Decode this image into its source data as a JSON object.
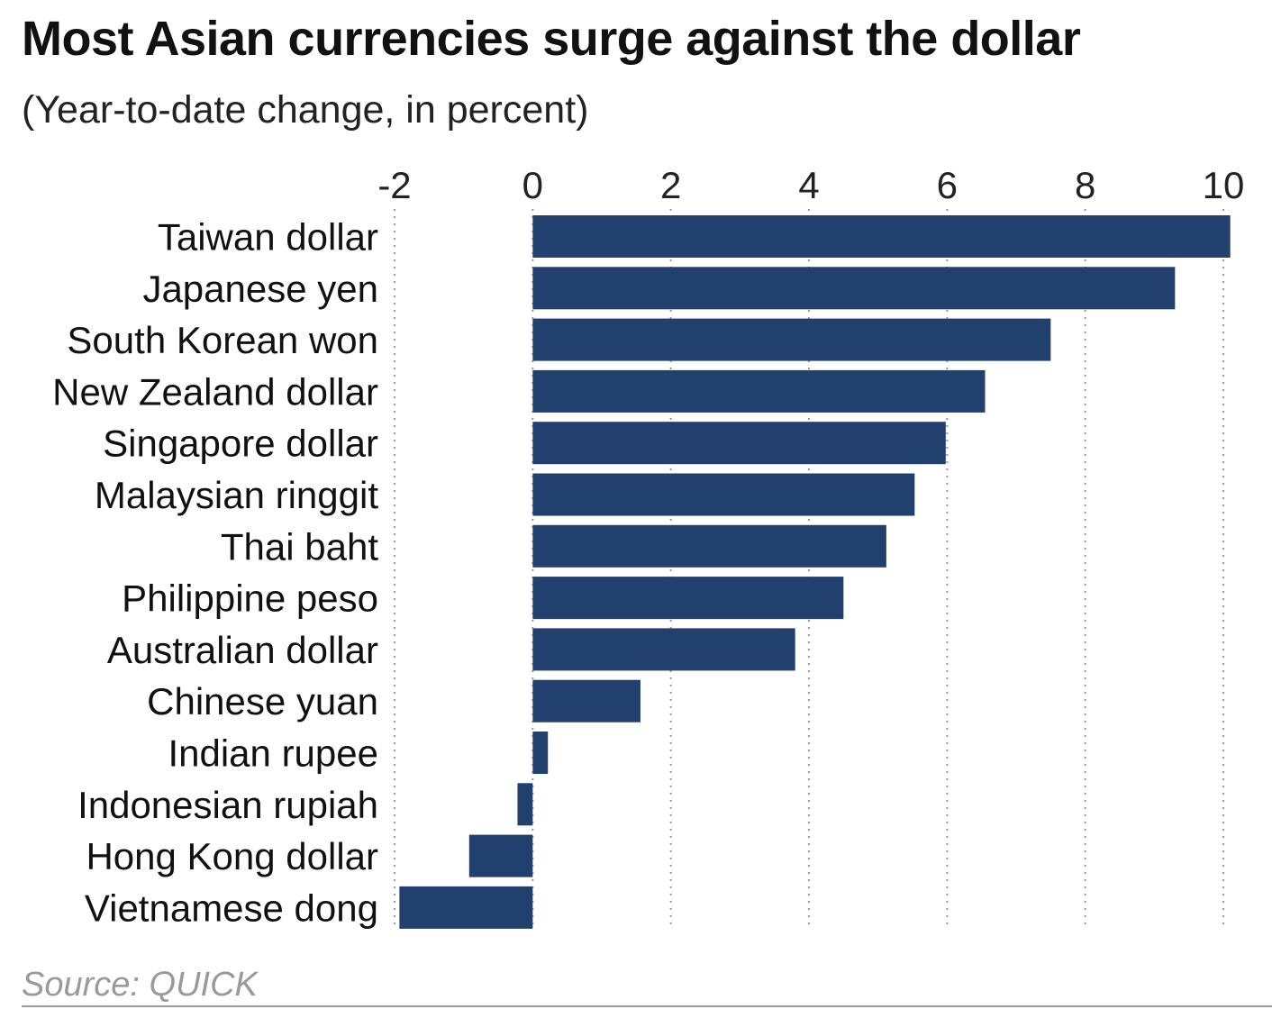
{
  "chart_data": {
    "type": "bar",
    "orientation": "horizontal",
    "title": "Most Asian currencies surge against the dollar",
    "subtitle": "(Year-to-date change, in percent)",
    "source": "Source: QUICK",
    "categories": [
      "Taiwan dollar",
      "Japanese yen",
      "South Korean won",
      "New Zealand dollar",
      "Singapore dollar",
      "Malaysian ringgit",
      "Thai baht",
      "Philippine peso",
      "Australian dollar",
      "Chinese yuan",
      "Indian rupee",
      "Indonesian rupiah",
      "Hong Kong dollar",
      "Vietnamese dong"
    ],
    "values": [
      10.1,
      9.3,
      7.5,
      6.55,
      5.98,
      5.53,
      5.12,
      4.5,
      3.8,
      1.56,
      0.22,
      -0.22,
      -0.92,
      -1.93
    ],
    "xlim": [
      -2,
      10
    ],
    "xticks": [
      "-2",
      "0",
      "2",
      "4",
      "6",
      "8",
      "10"
    ],
    "grid": "vertical dotted",
    "bar_color": "#22406e",
    "grid_color": "#9a9a9a"
  }
}
